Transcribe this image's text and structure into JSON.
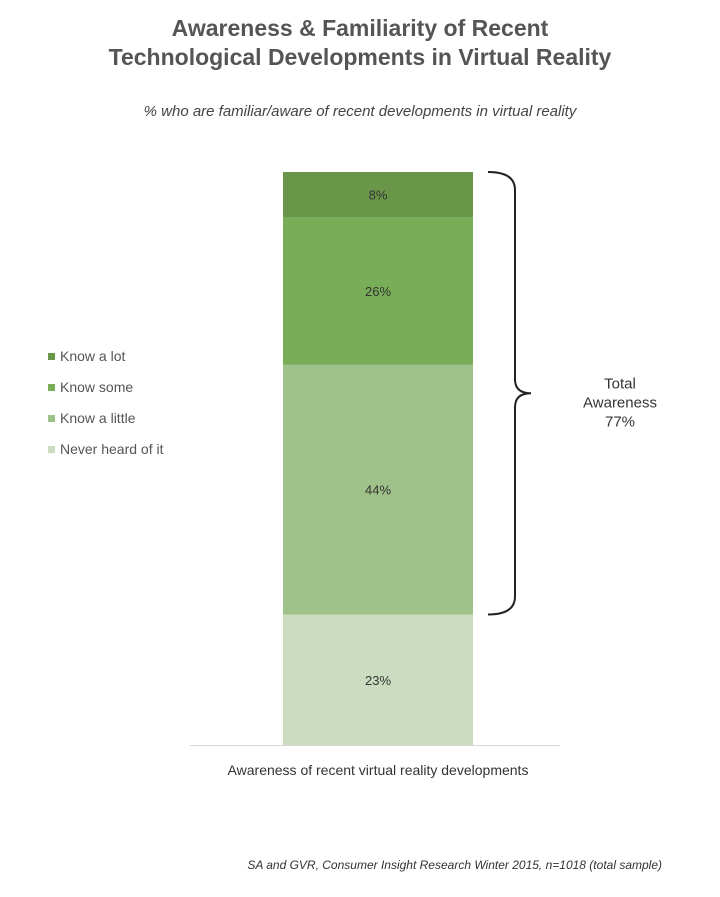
{
  "title_lines": [
    "Awareness & Familiarity of Recent",
    "Technological Developments in Virtual Reality"
  ],
  "subtitle": "% who are familiar/aware of recent developments in virtual reality",
  "source": "SA and GVR, Consumer Insight Research Winter 2015, n=1018 (total sample)",
  "chart_data": {
    "type": "bar",
    "stacked": true,
    "categories": [
      "Awareness of recent virtual reality developments"
    ],
    "xlabel": "Awareness of recent virtual reality developments",
    "ylim": [
      0,
      101
    ],
    "legend_position": "left",
    "series": [
      {
        "name": "Never heard of it",
        "values": [
          23
        ],
        "label": "23%",
        "color": "#cbdcc0"
      },
      {
        "name": "Know a little",
        "values": [
          44
        ],
        "label": "44%",
        "color": "#9fc28a"
      },
      {
        "name": "Know some",
        "values": [
          26
        ],
        "label": "26%",
        "color": "#79ad58"
      },
      {
        "name": "Know a lot",
        "values": [
          8
        ],
        "label": "8%",
        "color": "#6a9649"
      }
    ],
    "legend_order": [
      "Know a lot",
      "Know some",
      "Know a little",
      "Never heard of it"
    ],
    "annotation": {
      "lines": [
        "Total",
        "Awareness",
        "77%"
      ],
      "spans": [
        "Know a lot",
        "Know some",
        "Know a little"
      ]
    }
  }
}
